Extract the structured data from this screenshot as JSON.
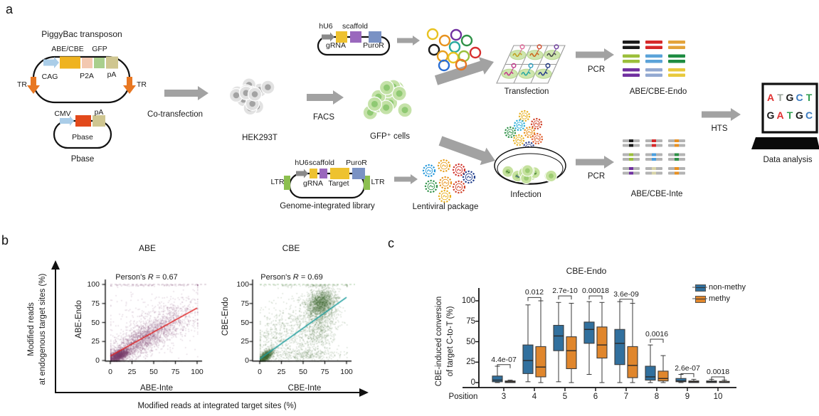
{
  "palette": {
    "arrow_gray": "#a2a2a2",
    "promoter_blue": "#aacde8",
    "editor_yellow": "#efb320",
    "p2a_pink": "#f3c8b0",
    "gfp_green": "#a9cf8d",
    "pa_olive": "#cfc690",
    "tr_orange": "#e87722",
    "pbase_red": "#e2491b",
    "hu6_gray": "#8a8a8a",
    "grna_yellow": "#eec22f",
    "scaffold_purple": "#9a68bd",
    "puror_blue": "#7a92c4",
    "ltr_green": "#8cbf4f",
    "hek_cell": "#e0e0e0",
    "hek_nucleus": "#a3a3a3",
    "gfp_cell": "#c2e0a4",
    "gfp_nucleus": "#8fc973",
    "dish_cell": "#c6e29f",
    "dish_nucleus": "#9ccb72",
    "endo_colors": [
      [
        "#1a1a1a",
        "#d62728",
        "#e3a33a"
      ],
      [
        "#9bbf3b",
        "#5ba3d9",
        "#1e8c42"
      ],
      [
        "#7030a0",
        "#93a9d1",
        "#e8c93d"
      ]
    ],
    "inte_center_colors": [
      [
        "#1a1a1a",
        "#d62728",
        "#e89020"
      ],
      [
        "#9bbf3b",
        "#4a9ede",
        "#2e9147"
      ],
      [
        "#7030a0",
        "#d8d4a8",
        "#e89020"
      ]
    ],
    "inte_gray": "#b3b3b3",
    "plasmid_circle_colors": [
      "#e8c220",
      "#7030a0",
      "#e8921e",
      "#2e9147",
      "#2aa8a0",
      "#1a1a1a",
      "#d62f2f",
      "#e8a020",
      "#e8c220",
      "#9bbf3b",
      "#2b6fd4",
      "#e87722"
    ],
    "plate_squiggle_colors": [
      [
        "#c0a020",
        "#cc6a20",
        "#4a4a4a"
      ],
      [
        "#c23a8c",
        "#2aa8a0",
        "#2b3f8c"
      ]
    ],
    "plate_circle_colors": [
      [
        "#e06a9a",
        "#d05030",
        "#7040a0"
      ],
      [
        "#c23a8c",
        "#30a0c0",
        "#203880"
      ]
    ],
    "lenti_virus_colors": [
      "#2196d9",
      "#e8a020",
      "#d03028",
      "#1f3d8c",
      "#2e9147",
      "#e8921e",
      "#d04028",
      "#e8b020"
    ],
    "falling_virus_colors": [
      "#e8b020",
      "#d04028",
      "#29aed8",
      "#2e9147",
      "#e8921e",
      "#e8b020",
      "#e06030",
      "#2b3f8c"
    ],
    "dish_glyph_colors": [
      "#3c6e2f",
      "#20407c",
      "#8a4a1a",
      "#3c6e2f",
      "#444444",
      "#3c6e2f"
    ]
  },
  "panel_a": {
    "label": "a",
    "piggybac_title": "PiggyBac transposon",
    "abe_cbe": "ABE/CBE",
    "gfp": "GFP",
    "cag": "CAG",
    "p2a": "P2A",
    "pa1": "pA",
    "tr_left": "TR",
    "tr_right": "TR",
    "cmv": "CMV",
    "pa2": "pA",
    "pbase_gene": "Pbase",
    "pbase_title": "Pbase",
    "cotransfection": "Co-transfection",
    "hek": "HEK293T",
    "facs": "FACS",
    "gfp_cells": "GFP⁺ cells",
    "hu6_top": "hU6",
    "scaffold_top": "scaffold",
    "grna_top": "gRNA",
    "puror_top": "PuroR",
    "transfection": "Transfection",
    "pcr_top": "PCR",
    "endo_label": "ABE/CBE-Endo",
    "hu6_bot": "hU6",
    "scaffold_bot": "scaffold",
    "puror_bot": "PuroR",
    "grna_bot": "gRNA",
    "target_bot": "Target",
    "ltr_left": "LTR",
    "ltr_right": "LTR",
    "library_title": "Genome-integrated library",
    "lentiviral": "Lentiviral package",
    "infection": "Infection",
    "pcr_bottom": "PCR",
    "inte_label": "ABE/CBE-Inte",
    "hts": "HTS",
    "screen": {
      "line1": [
        "A",
        "T",
        "G",
        "C",
        "T"
      ],
      "line1_colors": [
        "#e03030",
        "#9aa39a",
        "#1a1a1a",
        "#3a7abf",
        "#2e9e4f"
      ],
      "line2": [
        "G",
        "A",
        "T",
        "G",
        "C"
      ],
      "line2_colors": [
        "#1a1a1a",
        "#e03030",
        "#2e9e4f",
        "#1a1a1a",
        "#3a7abf"
      ]
    },
    "data_analysis": "Data analysis"
  },
  "panel_b": {
    "label": "b",
    "ylabel_line1": "Modified reads",
    "ylabel_line2": "at endogenous target sites (%)",
    "xlabel": "Modified reads at integrated target sites (%)"
  },
  "panel_c": {
    "label": "c"
  },
  "chart_data": [
    {
      "id": "abe_scatter",
      "type": "scatter",
      "title": "ABE",
      "annotation": {
        "prefix": "Person's ",
        "stat": "R",
        "value": " = 0.67"
      },
      "xlabel": "ABE-Inte",
      "ylabel": "ABE-Endo",
      "xlim": [
        0,
        100
      ],
      "ylim": [
        0,
        100
      ],
      "xticks": [
        0,
        25,
        50,
        75,
        100
      ],
      "yticks": [
        0,
        25,
        50,
        75,
        100
      ],
      "point_color": "#7c3f6d",
      "regression_line": {
        "x1": 0,
        "y1": 6,
        "x2": 100,
        "y2": 69,
        "color": "#e02020"
      },
      "ref_line_y": 100,
      "ref_line_color": "#c9b4c4",
      "clusters": [
        {
          "n": 1600,
          "cx": 9,
          "cy": 7,
          "sx": 6,
          "sy": 4.5,
          "rho": 0.6
        },
        {
          "n": 1700,
          "cx": 32,
          "cy": 25,
          "sx": 20,
          "sy": 15,
          "rho": 0.78
        },
        {
          "n": 700,
          "cx": 62,
          "cy": 48,
          "sx": 20,
          "sy": 18,
          "rho": 0.6
        },
        {
          "n": 260,
          "cx": 50,
          "cy": 55,
          "sx": 32,
          "sy": 28,
          "rho": 0.1
        },
        {
          "n": 70,
          "cx": 45,
          "cy": 99.5,
          "sx": 26,
          "sy": 0.8,
          "rho": 0
        }
      ]
    },
    {
      "id": "cbe_scatter",
      "type": "scatter",
      "title": "CBE",
      "annotation": {
        "prefix": "Person's ",
        "stat": "R",
        "value": " = 0.69"
      },
      "xlabel": "CBE-Inte",
      "ylabel": "CBE-Endo",
      "xlim": [
        0,
        100
      ],
      "ylim": [
        0,
        100
      ],
      "xticks": [
        0,
        25,
        50,
        75,
        100
      ],
      "yticks": [
        0,
        25,
        50,
        75,
        100
      ],
      "point_color": "#3f6b33",
      "regression_line": {
        "x1": 0,
        "y1": 2,
        "x2": 100,
        "y2": 83,
        "color": "#1f9e9e"
      },
      "ref_line_y": 100,
      "ref_line_color": "#a8cba0",
      "clusters": [
        {
          "n": 1100,
          "cx": 6,
          "cy": 6,
          "sx": 4.5,
          "sy": 4.5,
          "rho": 0.7
        },
        {
          "n": 1500,
          "cx": 70,
          "cy": 76,
          "sx": 8,
          "sy": 9,
          "rho": 0.25
        },
        {
          "n": 800,
          "cx": 68,
          "cy": 48,
          "sx": 11,
          "sy": 20,
          "rho": 0.25
        },
        {
          "n": 550,
          "cx": 38,
          "cy": 42,
          "sx": 24,
          "sy": 26,
          "rho": 0.45
        },
        {
          "n": 280,
          "cx": 52,
          "cy": 8,
          "sx": 22,
          "sy": 4,
          "rho": 0
        },
        {
          "n": 90,
          "cx": 55,
          "cy": 99.5,
          "sx": 26,
          "sy": 0.8,
          "rho": 0
        },
        {
          "n": 200,
          "cx": 15,
          "cy": 30,
          "sx": 12,
          "sy": 22,
          "rho": 0.2
        }
      ]
    },
    {
      "id": "cbe_endo_box",
      "type": "box",
      "title": "CBE-Endo",
      "ylabel_line1": "CBE-induced conversion",
      "ylabel_line2": "of target C-to-T (%)",
      "xlabel": "Position",
      "yticks": [
        0,
        25,
        50,
        75,
        100
      ],
      "positions": [
        "3",
        "4",
        "5",
        "6",
        "7",
        "8",
        "9",
        "10"
      ],
      "series": [
        {
          "name": "non-methy",
          "color": "#31709e",
          "boxes": [
            [
              0,
              1,
              3,
              8,
              20
            ],
            [
              1,
              11,
              27,
              46,
              95
            ],
            [
              1,
              39,
              57,
              70,
              98
            ],
            [
              10,
              48,
              65,
              74,
              99
            ],
            [
              0,
              22,
              48,
              65,
              99
            ],
            [
              0,
              3,
              7,
              20,
              46
            ],
            [
              0,
              1,
              2,
              5,
              10
            ],
            [
              0,
              0,
              1,
              2,
              4
            ]
          ]
        },
        {
          "name": "methy",
          "color": "#e0862c",
          "boxes": [
            [
              0,
              0,
              1,
              2,
              3
            ],
            [
              0,
              7,
              19,
              44,
              100
            ],
            [
              0,
              17,
              39,
              56,
              97
            ],
            [
              0,
              30,
              46,
              68,
              98
            ],
            [
              0,
              6,
              21,
              44,
              97
            ],
            [
              0,
              2,
              5,
              14,
              33
            ],
            [
              0,
              0,
              1,
              2,
              4
            ],
            [
              0,
              0,
              0.5,
              1.5,
              3
            ]
          ]
        }
      ],
      "pvalues": [
        "4.4e-07",
        "0.012",
        "2.7e-10",
        "0.00018",
        "3.6e-09",
        "0.0016",
        "2.6e-07",
        "0.0018"
      ],
      "pvalue_heights": [
        22,
        104,
        106,
        106,
        102,
        53,
        11,
        7
      ]
    }
  ]
}
